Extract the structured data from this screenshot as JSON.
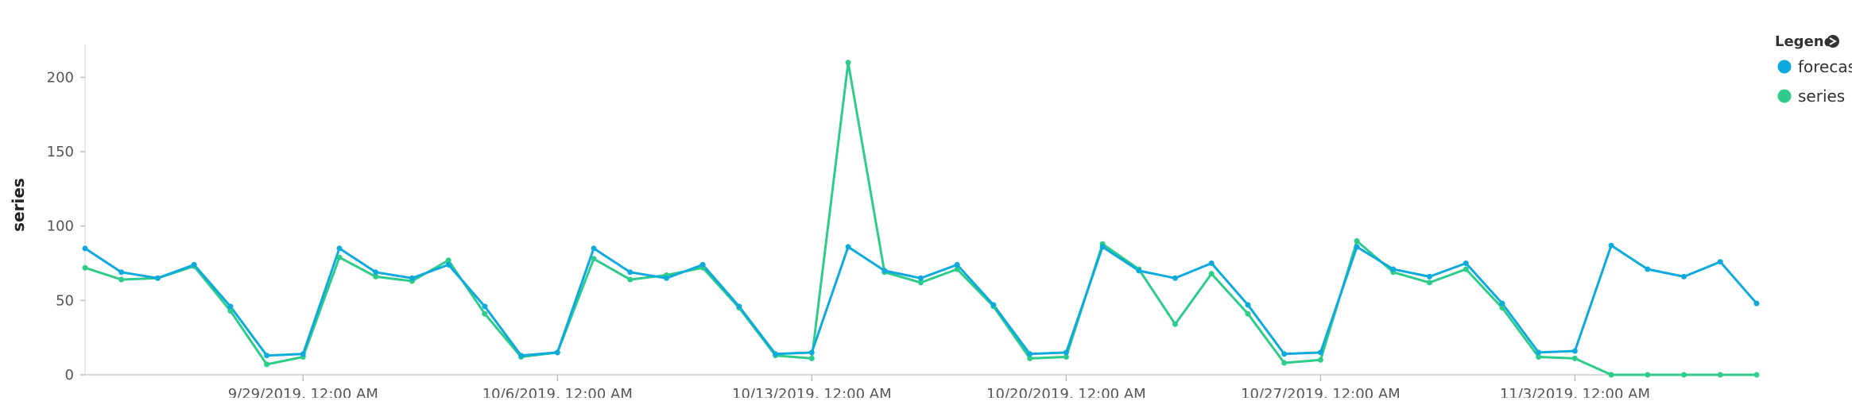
{
  "chart_data": {
    "type": "line",
    "ylabel": "series",
    "ylim": [
      0,
      220
    ],
    "y_ticks": [
      0,
      50,
      100,
      150,
      200
    ],
    "x_start": "9/23/2019",
    "x_tick_labels": [
      "9/29/2019, 12:00 AM",
      "10/6/2019, 12:00 AM",
      "10/13/2019, 12:00 AM",
      "10/20/2019, 12:00 AM",
      "10/27/2019, 12:00 AM",
      "11/3/2019, 12:00 AM"
    ],
    "x_tick_dates": [
      "9/29/2019",
      "10/6/2019",
      "10/13/2019",
      "10/20/2019",
      "10/27/2019",
      "11/3/2019"
    ],
    "x_end": "11/8/2019",
    "legend": {
      "title": "Legend",
      "position": "top-right"
    },
    "series": [
      {
        "name": "forecast",
        "color": "#0eaadd",
        "values": [
          85,
          69,
          65,
          74,
          46,
          13,
          14,
          85,
          69,
          65,
          74,
          46,
          13,
          15,
          85,
          69,
          65,
          74,
          46,
          14,
          15,
          86,
          70,
          65,
          74,
          47,
          14,
          15,
          86,
          70,
          65,
          75,
          47,
          14,
          15,
          86,
          71,
          66,
          75,
          48,
          15,
          16,
          87,
          71,
          66,
          76,
          48
        ]
      },
      {
        "name": "series",
        "color": "#2ecc8a",
        "values": [
          72,
          64,
          65,
          73,
          43,
          7,
          12,
          79,
          66,
          63,
          77,
          41,
          12,
          15,
          78,
          64,
          67,
          72,
          45,
          13,
          11,
          210,
          69,
          62,
          71,
          46,
          11,
          12,
          88,
          71,
          34,
          68,
          41,
          8,
          10,
          90,
          69,
          62,
          71,
          45,
          12,
          11,
          0,
          0,
          0,
          0,
          0
        ]
      }
    ]
  }
}
